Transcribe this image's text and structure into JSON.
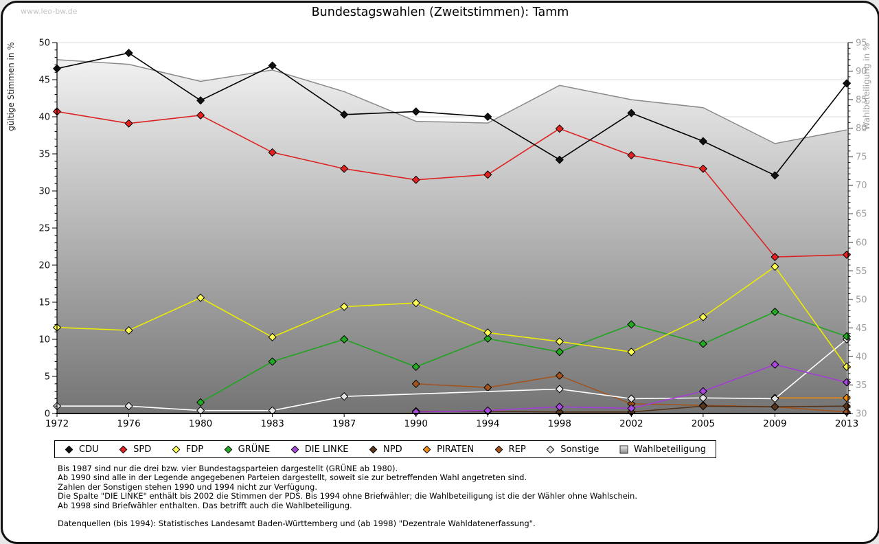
{
  "page": {
    "watermark": "www.leo-bw.de",
    "title": "Bundestagswahlen (Zweitstimmen): Tamm"
  },
  "chart_data": {
    "type": "line",
    "title": "Bundestagswahlen (Zweitstimmen): Tamm",
    "categories": [
      "1972",
      "1976",
      "1980",
      "1983",
      "1987",
      "1990",
      "1994",
      "1998",
      "2002",
      "2005",
      "2009",
      "2013"
    ],
    "y_left": {
      "label": "gültige Stimmen in %",
      "min": 0,
      "max": 50,
      "tick_step": 5,
      "minor_step": 1
    },
    "y_right": {
      "label": "Wahlbeteiligung in %",
      "min": 30,
      "max": 95,
      "tick_step": 5,
      "minor_step": 1
    },
    "grid": "horizontal",
    "legend_position": "bottom",
    "area_series": {
      "name": "Wahlbeteiligung",
      "axis": "right",
      "values": [
        92.0,
        91.2,
        88.2,
        90.2,
        86.4,
        81.2,
        80.9,
        87.5,
        85.0,
        83.6,
        77.3,
        79.7
      ],
      "stroke": "#8a8a8a",
      "fill_top": "#f7f7f7",
      "fill_bottom": "#747474"
    },
    "series": [
      {
        "name": "CDU",
        "color": "#000000",
        "marker": "#111111",
        "values": [
          46.5,
          48.6,
          42.2,
          46.9,
          40.3,
          40.7,
          40.0,
          34.2,
          40.5,
          36.7,
          32.1,
          44.5
        ]
      },
      {
        "name": "SPD",
        "color": "#dd2222",
        "marker": "#e32222",
        "values": [
          40.7,
          39.1,
          40.2,
          35.2,
          33.0,
          31.5,
          32.2,
          38.4,
          34.8,
          33.0,
          21.1,
          21.4
        ]
      },
      {
        "name": "FDP",
        "color": "#eded00",
        "marker": "#ffff55",
        "values": [
          11.6,
          11.2,
          15.6,
          10.3,
          14.4,
          14.9,
          10.9,
          9.7,
          8.3,
          13.0,
          19.8,
          6.3
        ]
      },
      {
        "name": "GRÜNE",
        "color": "#1fa41f",
        "marker": "#22aa22",
        "values": [
          null,
          null,
          1.5,
          7.0,
          10.0,
          6.3,
          10.1,
          8.3,
          12.0,
          9.4,
          13.7,
          10.4
        ]
      },
      {
        "name": "DIE LINKE",
        "color": "#a43cd6",
        "marker": "#a848dd",
        "values": [
          null,
          null,
          null,
          null,
          null,
          0.2,
          0.4,
          0.9,
          0.7,
          3.0,
          6.6,
          4.2
        ]
      },
      {
        "name": "NPD",
        "color": "#553319",
        "marker": "#5a3519",
        "values": [
          null,
          null,
          null,
          null,
          null,
          0.3,
          0.3,
          0.2,
          0.2,
          1.0,
          0.9,
          1.0
        ]
      },
      {
        "name": "PIRATEN",
        "color": "#ee8800",
        "marker": "#f08d11",
        "values": [
          null,
          null,
          null,
          null,
          null,
          null,
          null,
          null,
          null,
          null,
          2.1,
          2.1
        ]
      },
      {
        "name": "REP",
        "color": "#a3541e",
        "marker": "#a3541e",
        "values": [
          null,
          null,
          null,
          null,
          null,
          4.0,
          3.5,
          5.1,
          1.3,
          1.1,
          0.9,
          0.2
        ]
      },
      {
        "name": "Sonstige",
        "color": "#ffffff",
        "marker": "#e4e4e4",
        "values": [
          1.0,
          1.0,
          0.4,
          0.4,
          2.3,
          null,
          null,
          3.3,
          2.0,
          2.1,
          2.0,
          10.0
        ]
      }
    ],
    "draw_order": [
      "PIRATEN",
      "REP",
      "NPD",
      "Sonstige",
      "DIE LINKE",
      "GRÜNE",
      "FDP",
      "SPD",
      "CDU"
    ],
    "legend_order": [
      "CDU",
      "SPD",
      "FDP",
      "GRÜNE",
      "DIE LINKE",
      "NPD",
      "PIRATEN",
      "REP",
      "Sonstige",
      "Wahlbeteiligung"
    ]
  },
  "notes": {
    "lines": [
      "Bis 1987 sind nur die drei bzw. vier Bundestagsparteien dargestellt (GRÜNE ab 1980).",
      "Ab 1990 sind alle in der Legende angegebenen Parteien dargestellt, soweit sie zur betreffenden Wahl angetreten sind.",
      "Zahlen der Sonstigen stehen 1990 und 1994 nicht zur Verfügung.",
      "Die Spalte \"DIE LINKE\" enthält bis 2002 die Stimmen der PDS. Bis 1994 ohne Briefwähler; die Wahlbeteiligung ist die der Wähler ohne Wahlschein.",
      "Ab 1998 sind Briefwähler enthalten. Das betrifft auch die Wahlbeteiligung.",
      "",
      "Datenquellen (bis 1994): Statistisches Landesamt Baden-Württemberg und (ab 1998) \"Dezentrale Wahldatenerfassung\"."
    ]
  }
}
